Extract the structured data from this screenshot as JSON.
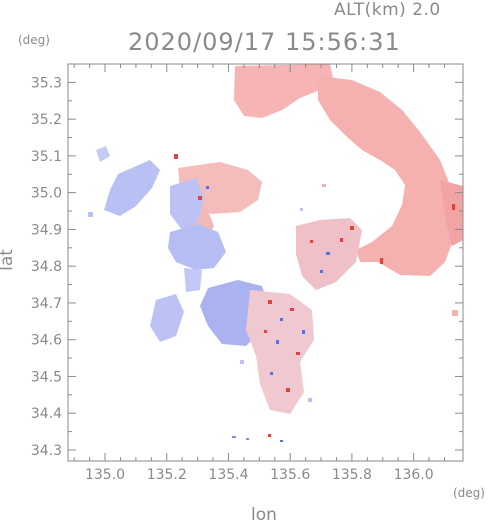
{
  "header": {
    "altitude_label": "ALT(km)  2.0",
    "timestamp": "2020/09/17 15:56:31",
    "unit_top_left": "(deg)",
    "unit_bottom_right": "(deg)"
  },
  "axes": {
    "xlabel": "lon",
    "ylabel": "lat",
    "x_ticks": [
      "135.0",
      "135.2",
      "135.4",
      "135.6",
      "135.8",
      "136.0"
    ],
    "y_ticks": [
      "35.3",
      "35.2",
      "35.1",
      "35.0",
      "34.9",
      "34.8",
      "34.7",
      "34.6",
      "34.5",
      "34.4",
      "34.3"
    ],
    "xlim": [
      134.88,
      136.16
    ],
    "ylim": [
      34.27,
      35.35
    ]
  },
  "colors": {
    "axis": "#8a8a8a",
    "approaching": "#a9b2f2",
    "receding": "#f4a9a9",
    "strong_red": "#e0443e",
    "strong_blue": "#5b6fe0"
  }
}
